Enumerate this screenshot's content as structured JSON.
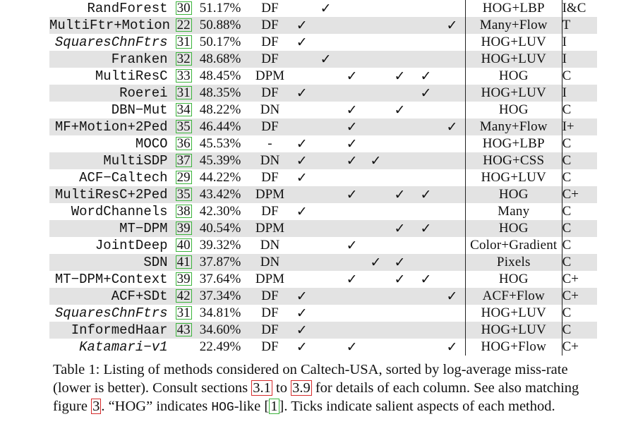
{
  "table": {
    "rows": [
      {
        "name": "RandForest",
        "italic": false,
        "ref": "30",
        "miss_rate": "51.17%",
        "classifier": "DF",
        "ticks": [
          "",
          "✓",
          "",
          "",
          "",
          "",
          ""
        ],
        "features": "HOG+LBP",
        "training": "I&C",
        "shaded": false
      },
      {
        "name": "MultiFtr+Motion",
        "italic": false,
        "ref": "22",
        "miss_rate": "50.88%",
        "classifier": "DF",
        "ticks": [
          "✓",
          "",
          "",
          "",
          "",
          "",
          "✓"
        ],
        "features": "Many+Flow",
        "training": "T",
        "shaded": true
      },
      {
        "name": "SquaresChnFtrs",
        "italic": true,
        "ref": "31",
        "miss_rate": "50.17%",
        "classifier": "DF",
        "ticks": [
          "✓",
          "",
          "",
          "",
          "",
          "",
          ""
        ],
        "features": "HOG+LUV",
        "training": "I",
        "shaded": false
      },
      {
        "name": "Franken",
        "italic": false,
        "ref": "32",
        "miss_rate": "48.68%",
        "classifier": "DF",
        "ticks": [
          "",
          "✓",
          "",
          "",
          "",
          "",
          ""
        ],
        "features": "HOG+LUV",
        "training": "I",
        "shaded": true
      },
      {
        "name": "MultiResC",
        "italic": false,
        "ref": "33",
        "miss_rate": "48.45%",
        "classifier": "DPM",
        "ticks": [
          "",
          "",
          "✓",
          "",
          "✓",
          "✓",
          ""
        ],
        "features": "HOG",
        "training": "C",
        "shaded": false
      },
      {
        "name": "Roerei",
        "italic": false,
        "ref": "31",
        "miss_rate": "48.35%",
        "classifier": "DF",
        "ticks": [
          "✓",
          "",
          "",
          "",
          "",
          "✓",
          ""
        ],
        "features": "HOG+LUV",
        "training": "I",
        "shaded": true
      },
      {
        "name": "DBN−Mut",
        "italic": false,
        "ref": "34",
        "miss_rate": "48.22%",
        "classifier": "DN",
        "ticks": [
          "",
          "",
          "✓",
          "",
          "✓",
          "",
          ""
        ],
        "features": "HOG",
        "training": "C",
        "shaded": false
      },
      {
        "name": "MF+Motion+2Ped",
        "italic": false,
        "ref": "35",
        "miss_rate": "46.44%",
        "classifier": "DF",
        "ticks": [
          "",
          "",
          "✓",
          "",
          "",
          "",
          "✓"
        ],
        "features": "Many+Flow",
        "training": "I+",
        "shaded": true
      },
      {
        "name": "MOCO",
        "italic": false,
        "ref": "36",
        "miss_rate": "45.53%",
        "classifier": "-",
        "ticks": [
          "✓",
          "",
          "✓",
          "",
          "",
          "",
          ""
        ],
        "features": "HOG+LBP",
        "training": "C",
        "shaded": false
      },
      {
        "name": "MultiSDP",
        "italic": false,
        "ref": "37",
        "miss_rate": "45.39%",
        "classifier": "DN",
        "ticks": [
          "✓",
          "",
          "✓",
          "✓",
          "",
          "",
          ""
        ],
        "features": "HOG+CSS",
        "training": "C",
        "shaded": true
      },
      {
        "name": "ACF−Caltech",
        "italic": false,
        "ref": "29",
        "miss_rate": "44.22%",
        "classifier": "DF",
        "ticks": [
          "✓",
          "",
          "",
          "",
          "",
          "",
          ""
        ],
        "features": "HOG+LUV",
        "training": "C",
        "shaded": false
      },
      {
        "name": "MultiResC+2Ped",
        "italic": false,
        "ref": "35",
        "miss_rate": "43.42%",
        "classifier": "DPM",
        "ticks": [
          "",
          "",
          "✓",
          "",
          "✓",
          "✓",
          ""
        ],
        "features": "HOG",
        "training": "C+",
        "shaded": true
      },
      {
        "name": "WordChannels",
        "italic": false,
        "ref": "38",
        "miss_rate": "42.30%",
        "classifier": "DF",
        "ticks": [
          "✓",
          "",
          "",
          "",
          "",
          "",
          ""
        ],
        "features": "Many",
        "training": "C",
        "shaded": false
      },
      {
        "name": "MT−DPM",
        "italic": false,
        "ref": "39",
        "miss_rate": "40.54%",
        "classifier": "DPM",
        "ticks": [
          "",
          "",
          "",
          "",
          "✓",
          "✓",
          ""
        ],
        "features": "HOG",
        "training": "C",
        "shaded": true
      },
      {
        "name": "JointDeep",
        "italic": false,
        "ref": "40",
        "miss_rate": "39.32%",
        "classifier": "DN",
        "ticks": [
          "",
          "",
          "✓",
          "",
          "",
          "",
          ""
        ],
        "features": "Color+Gradient",
        "training": "C",
        "shaded": false
      },
      {
        "name": "SDN",
        "italic": false,
        "ref": "41",
        "miss_rate": "37.87%",
        "classifier": "DN",
        "ticks": [
          "",
          "",
          "",
          "✓",
          "✓",
          "",
          ""
        ],
        "features": "Pixels",
        "training": "C",
        "shaded": true
      },
      {
        "name": "MT−DPM+Context",
        "italic": false,
        "ref": "39",
        "miss_rate": "37.64%",
        "classifier": "DPM",
        "ticks": [
          "",
          "",
          "✓",
          "",
          "✓",
          "✓",
          ""
        ],
        "features": "HOG",
        "training": "C+",
        "shaded": false
      },
      {
        "name": "ACF+SDt",
        "italic": false,
        "ref": "42",
        "miss_rate": "37.34%",
        "classifier": "DF",
        "ticks": [
          "✓",
          "",
          "",
          "",
          "",
          "",
          "✓"
        ],
        "features": "ACF+Flow",
        "training": "C+",
        "shaded": true
      },
      {
        "name": "SquaresChnFtrs",
        "italic": true,
        "ref": "31",
        "miss_rate": "34.81%",
        "classifier": "DF",
        "ticks": [
          "✓",
          "",
          "",
          "",
          "",
          "",
          ""
        ],
        "features": "HOG+LUV",
        "training": "C",
        "shaded": false
      },
      {
        "name": "InformedHaar",
        "italic": false,
        "ref": "43",
        "miss_rate": "34.60%",
        "classifier": "DF",
        "ticks": [
          "✓",
          "",
          "",
          "",
          "",
          "",
          ""
        ],
        "features": "HOG+LUV",
        "training": "C",
        "shaded": true
      },
      {
        "name": "Katamari−v1",
        "italic": true,
        "ref": "",
        "miss_rate": "22.49%",
        "classifier": "DF",
        "ticks": [
          "✓",
          "",
          "✓",
          "",
          "",
          "",
          "✓"
        ],
        "features": "HOG+Flow",
        "training": "C+",
        "shaded": false
      }
    ]
  },
  "caption": {
    "label": "Table 1:",
    "part1": " Listing of methods considered on Caltech-USA, sorted by log-average miss-rate (lower is better). Consult sections ",
    "ref_a": "3.1",
    "part2": " to ",
    "ref_b": "3.9",
    "part3": " for details of each column. See also matching figure ",
    "ref_fig": "3",
    "part4": ". “HOG” indicates ",
    "mono_word": "HOG",
    "part5": "-like [",
    "ref_cite": "1",
    "part6": "]. Ticks indicate salient aspects of each method."
  },
  "colors": {
    "row_shade": "#e3e3e3",
    "ref_green": "#3bb43b",
    "ref_red": "#d62a2a"
  }
}
